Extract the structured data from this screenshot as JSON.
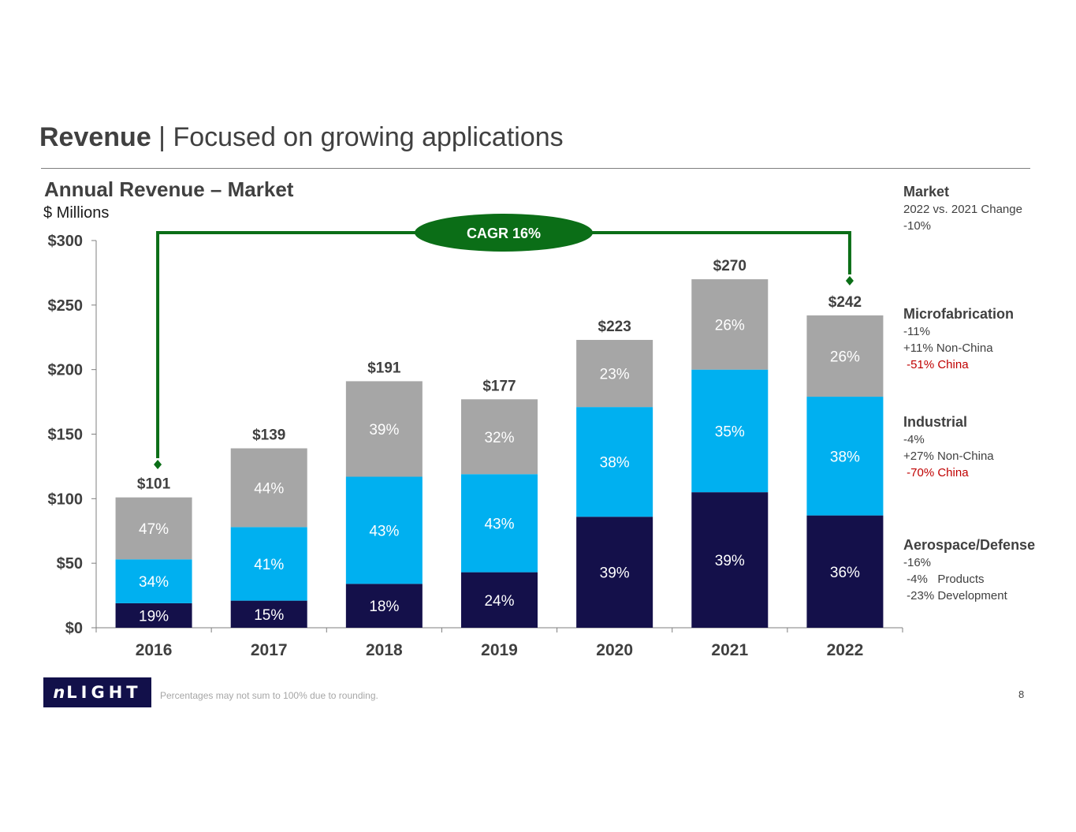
{
  "header": {
    "title_bold": "Revenue",
    "title_rest": " | Focused on growing applications"
  },
  "chart_data": {
    "type": "bar",
    "stacked": true,
    "title": "Annual Revenue – Market",
    "ylabel": "$ Millions",
    "xlabel": "",
    "categories": [
      "2016",
      "2017",
      "2018",
      "2019",
      "2020",
      "2021",
      "2022"
    ],
    "ylim": [
      0,
      300
    ],
    "ytick_values": [
      0,
      50,
      100,
      150,
      200,
      250,
      300
    ],
    "ytick_labels": [
      "$0",
      "$50",
      "$100",
      "$150",
      "$200",
      "$250",
      "$300"
    ],
    "totals": [
      101,
      139,
      191,
      177,
      223,
      270,
      242
    ],
    "total_labels": [
      "$101",
      "$139",
      "$191",
      "$177",
      "$223",
      "$270",
      "$242"
    ],
    "series": [
      {
        "name": "Aerospace/Defense",
        "color": "#14104a",
        "text_color": "#ffffff",
        "values": [
          19,
          21,
          34,
          43,
          86,
          105,
          87
        ],
        "labels": [
          "19%",
          "15%",
          "18%",
          "24%",
          "39%",
          "39%",
          "36%"
        ]
      },
      {
        "name": "Industrial",
        "color": "#00b0f0",
        "text_color": "#ffffff",
        "values": [
          34,
          57,
          83,
          76,
          85,
          95,
          92
        ],
        "labels": [
          "34%",
          "41%",
          "43%",
          "43%",
          "38%",
          "35%",
          "38%"
        ]
      },
      {
        "name": "Microfabrication",
        "color": "#a6a6a6",
        "text_color": "#ffffff",
        "values": [
          48,
          61,
          74,
          58,
          52,
          70,
          63
        ],
        "labels": [
          "47%",
          "44%",
          "39%",
          "32%",
          "23%",
          "26%",
          "26%"
        ]
      }
    ],
    "annotation": {
      "text": "CAGR 16%",
      "color": "#0b6e17",
      "from": "2016",
      "to": "2022"
    }
  },
  "sidebar": {
    "market": {
      "heading": "Market",
      "lines": [
        "2022 vs. 2021 Change",
        "-10%"
      ]
    },
    "microfabrication": {
      "heading": "Microfabrication",
      "lines": [
        "-11%",
        "+11% Non-China"
      ],
      "red": " -51% China"
    },
    "industrial": {
      "heading": "Industrial",
      "lines": [
        "-4%",
        "+27% Non-China"
      ],
      "red": " -70% China"
    },
    "aerospace": {
      "heading": "Aerospace/Defense",
      "lines": [
        "-16%",
        " -4%   Products",
        " -23% Development"
      ]
    }
  },
  "footer": {
    "logo_n": "n",
    "logo_rest": "LIGHT",
    "footnote": "Percentages may not sum to 100% due to rounding.",
    "page": "8"
  }
}
